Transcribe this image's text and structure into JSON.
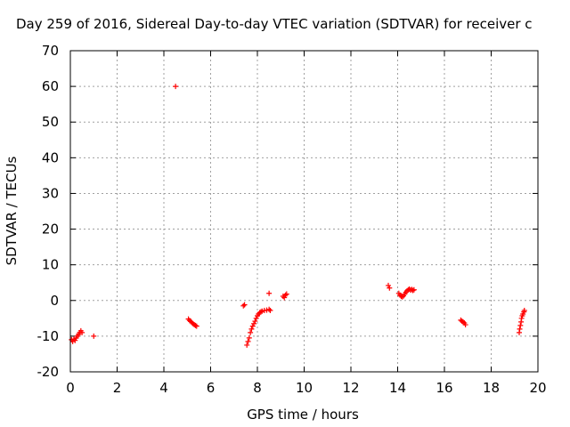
{
  "chart_data": {
    "type": "scatter",
    "title": "Day 259 of 2016, Sidereal Day-to-day VTEC variation (SDTVAR) for receiver c",
    "xlabel": "GPS time / hours",
    "ylabel": "SDTVAR / TECUs",
    "xlim": [
      0,
      20
    ],
    "ylim": [
      -20,
      70
    ],
    "xticks": [
      "0",
      "2",
      "4",
      "6",
      "8",
      "10",
      "12",
      "14",
      "16",
      "18",
      "20"
    ],
    "yticks": [
      "-20",
      "-10",
      "0",
      "10",
      "20",
      "30",
      "40",
      "50",
      "60",
      "70"
    ],
    "grid": true,
    "marker": "plus",
    "colors": {
      "points": "#ff0000",
      "grid": "#a0a0a0",
      "axis": "#000000"
    },
    "series": [
      {
        "points": [
          [
            0.05,
            -11.0
          ],
          [
            0.1,
            -11.5
          ],
          [
            0.15,
            -10.8
          ],
          [
            0.2,
            -11.2
          ],
          [
            0.25,
            -10.5
          ],
          [
            0.3,
            -10.0
          ],
          [
            0.35,
            -9.5
          ],
          [
            0.4,
            -9.0
          ],
          [
            0.45,
            -8.5
          ],
          [
            0.5,
            -9.0
          ],
          [
            1.0,
            -10.0
          ],
          [
            4.5,
            60.0
          ],
          [
            5.05,
            -5.2
          ],
          [
            5.1,
            -5.6
          ],
          [
            5.15,
            -5.9
          ],
          [
            5.2,
            -6.2
          ],
          [
            5.25,
            -6.5
          ],
          [
            5.3,
            -6.8
          ],
          [
            5.35,
            -7.0
          ],
          [
            5.4,
            -7.2
          ],
          [
            7.4,
            -1.5
          ],
          [
            7.45,
            -1.2
          ],
          [
            7.55,
            -12.5
          ],
          [
            7.6,
            -11.5
          ],
          [
            7.65,
            -10.5
          ],
          [
            7.7,
            -9.0
          ],
          [
            7.75,
            -8.0
          ],
          [
            7.8,
            -7.2
          ],
          [
            7.85,
            -6.5
          ],
          [
            7.9,
            -5.8
          ],
          [
            7.95,
            -5.0
          ],
          [
            8.0,
            -4.3
          ],
          [
            8.05,
            -3.8
          ],
          [
            8.1,
            -3.4
          ],
          [
            8.15,
            -3.2
          ],
          [
            8.2,
            -3.0
          ],
          [
            8.3,
            -2.8
          ],
          [
            8.4,
            -2.7
          ],
          [
            8.5,
            -2.5
          ],
          [
            8.55,
            -2.8
          ],
          [
            8.5,
            2.0
          ],
          [
            9.1,
            1.2
          ],
          [
            9.15,
            0.8
          ],
          [
            9.2,
            1.5
          ],
          [
            9.25,
            1.8
          ],
          [
            13.6,
            4.2
          ],
          [
            13.65,
            3.5
          ],
          [
            14.05,
            2.0
          ],
          [
            14.1,
            1.5
          ],
          [
            14.15,
            1.2
          ],
          [
            14.2,
            1.0
          ],
          [
            14.25,
            1.3
          ],
          [
            14.3,
            1.8
          ],
          [
            14.35,
            2.3
          ],
          [
            14.4,
            2.7
          ],
          [
            14.45,
            3.0
          ],
          [
            14.5,
            3.2
          ],
          [
            14.55,
            2.9
          ],
          [
            14.6,
            3.1
          ],
          [
            14.65,
            2.8
          ],
          [
            14.7,
            3.0
          ],
          [
            16.7,
            -5.5
          ],
          [
            16.75,
            -5.8
          ],
          [
            16.8,
            -6.0
          ],
          [
            16.85,
            -6.3
          ],
          [
            16.9,
            -6.8
          ],
          [
            19.2,
            -9.0
          ],
          [
            19.22,
            -8.0
          ],
          [
            19.25,
            -7.0
          ],
          [
            19.28,
            -6.0
          ],
          [
            19.3,
            -5.0
          ],
          [
            19.33,
            -4.3
          ],
          [
            19.36,
            -3.8
          ],
          [
            19.4,
            -3.2
          ],
          [
            19.42,
            -2.8
          ]
        ]
      }
    ]
  }
}
